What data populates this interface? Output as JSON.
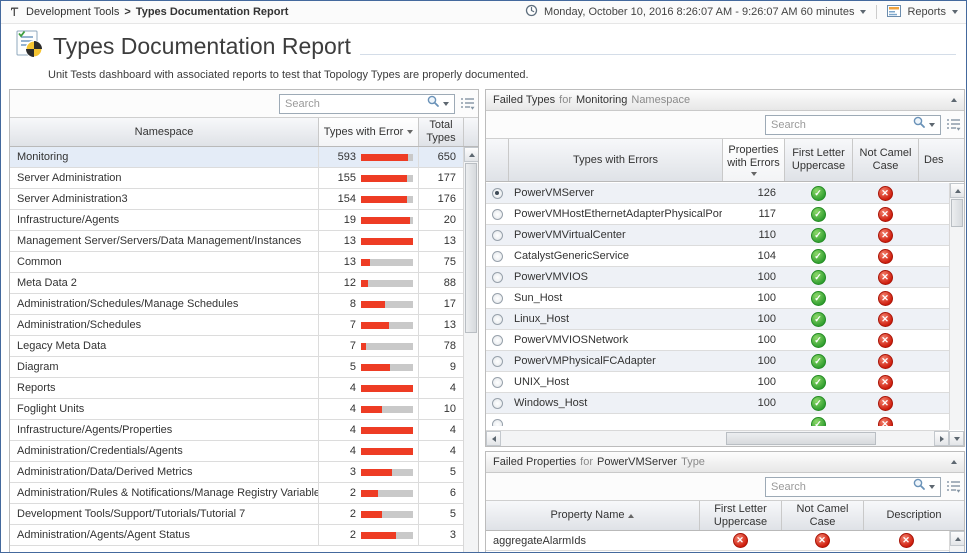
{
  "topbar": {
    "breadcrumb": {
      "items": [
        "Development Tools",
        "Types Documentation Report"
      ],
      "separator": ">"
    },
    "timerange": "Monday, October 10, 2016 8:26:07 AM - 9:26:07 AM 60 minutes",
    "reports_label": "Reports"
  },
  "header": {
    "title": "Types Documentation Report",
    "subtitle": "Unit Tests dashboard with associated reports to test that Topology Types are properly documented."
  },
  "search_placeholder": "Search",
  "colors": {
    "frame_border": "#44699d",
    "error_bar_red": "#ee3c24",
    "bar_track_gray": "#c9c9c9",
    "pass_green": "#2f9e2f",
    "fail_red": "#cd1a0a",
    "selected_row": "#e4ecf7"
  },
  "left_table": {
    "columns": [
      "Namespace",
      "Types with Error",
      "Total Types"
    ],
    "sort": {
      "column": "Types with Error",
      "direction": "desc"
    },
    "selected_row": "Monitoring",
    "rows": [
      {
        "namespace": "Monitoring",
        "errors": 593,
        "total": 650
      },
      {
        "namespace": "Server Administration",
        "errors": 155,
        "total": 177
      },
      {
        "namespace": "Server Administration3",
        "errors": 154,
        "total": 176
      },
      {
        "namespace": "Infrastructure/Agents",
        "errors": 19,
        "total": 20
      },
      {
        "namespace": "Management Server/Servers/Data Management/Instances",
        "errors": 13,
        "total": 13
      },
      {
        "namespace": "Common",
        "errors": 13,
        "total": 75
      },
      {
        "namespace": "Meta Data 2",
        "errors": 12,
        "total": 88
      },
      {
        "namespace": "Administration/Schedules/Manage Schedules",
        "errors": 8,
        "total": 17
      },
      {
        "namespace": "Administration/Schedules",
        "errors": 7,
        "total": 13
      },
      {
        "namespace": "Legacy Meta Data",
        "errors": 7,
        "total": 78
      },
      {
        "namespace": "Diagram",
        "errors": 5,
        "total": 9
      },
      {
        "namespace": "Reports",
        "errors": 4,
        "total": 4
      },
      {
        "namespace": "Foglight Units",
        "errors": 4,
        "total": 10
      },
      {
        "namespace": "Infrastructure/Agents/Properties",
        "errors": 4,
        "total": 4
      },
      {
        "namespace": "Administration/Credentials/Agents",
        "errors": 4,
        "total": 4
      },
      {
        "namespace": "Administration/Data/Derived Metrics",
        "errors": 3,
        "total": 5
      },
      {
        "namespace": "Administration/Rules & Notifications/Manage Registry Variables",
        "errors": 2,
        "total": 6
      },
      {
        "namespace": "Development Tools/Support/Tutorials/Tutorial 7",
        "errors": 2,
        "total": 5
      },
      {
        "namespace": "Administration/Agents/Agent Status",
        "errors": 2,
        "total": 3
      }
    ]
  },
  "failed_types_panel": {
    "title_parts": {
      "p1": "Failed Types",
      "p2": "for",
      "p3": "Monitoring",
      "p4": "Namespace"
    },
    "columns": [
      "Types with Errors",
      "Properties with Errors",
      "First Letter Uppercase",
      "Not Camel Case",
      "Des"
    ],
    "sort": {
      "column": "Properties with Errors",
      "direction": "desc"
    },
    "rows": [
      {
        "type": "PowerVMServer",
        "properties_with_errors": 126,
        "first_letter_uppercase": "pass",
        "not_camel_case": "fail",
        "selected": true
      },
      {
        "type": "PowerVMHostEthernetAdapterPhysicalPort",
        "properties_with_errors": 117,
        "first_letter_uppercase": "pass",
        "not_camel_case": "fail",
        "selected": false
      },
      {
        "type": "PowerVMVirtualCenter",
        "properties_with_errors": 110,
        "first_letter_uppercase": "pass",
        "not_camel_case": "fail",
        "selected": false
      },
      {
        "type": "CatalystGenericService",
        "properties_with_errors": 104,
        "first_letter_uppercase": "pass",
        "not_camel_case": "fail",
        "selected": false
      },
      {
        "type": "PowerVMVIOS",
        "properties_with_errors": 100,
        "first_letter_uppercase": "pass",
        "not_camel_case": "fail",
        "selected": false
      },
      {
        "type": "Sun_Host",
        "properties_with_errors": 100,
        "first_letter_uppercase": "pass",
        "not_camel_case": "fail",
        "selected": false
      },
      {
        "type": "Linux_Host",
        "properties_with_errors": 100,
        "first_letter_uppercase": "pass",
        "not_camel_case": "fail",
        "selected": false
      },
      {
        "type": "PowerVMVIOSNetwork",
        "properties_with_errors": 100,
        "first_letter_uppercase": "pass",
        "not_camel_case": "fail",
        "selected": false
      },
      {
        "type": "PowerVMPhysicalFCAdapter",
        "properties_with_errors": 100,
        "first_letter_uppercase": "pass",
        "not_camel_case": "fail",
        "selected": false
      },
      {
        "type": "UNIX_Host",
        "properties_with_errors": 100,
        "first_letter_uppercase": "pass",
        "not_camel_case": "fail",
        "selected": false
      },
      {
        "type": "Windows_Host",
        "properties_with_errors": 100,
        "first_letter_uppercase": "pass",
        "not_camel_case": "fail",
        "selected": false
      },
      {
        "type": "",
        "properties_with_errors": "",
        "first_letter_uppercase": "pass",
        "not_camel_case": "fail",
        "selected": false
      }
    ]
  },
  "failed_properties_panel": {
    "title_parts": {
      "p1": "Failed Properties",
      "p2": "for",
      "p3": "PowerVMServer",
      "p4": "Type"
    },
    "columns": [
      "Property Name",
      "First Letter Uppercase",
      "Not Camel Case",
      "Description"
    ],
    "sort": {
      "column": "Property Name",
      "direction": "asc"
    },
    "rows": [
      {
        "property": "aggregateAlarmIds",
        "first_letter_uppercase": "fail",
        "not_camel_case": "fail",
        "description": "fail"
      }
    ]
  }
}
